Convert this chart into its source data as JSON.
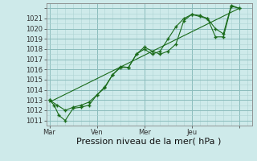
{
  "title": "",
  "xlabel": "Pression niveau de la mer( hPa )",
  "bg_color": "#ceeaea",
  "grid_color_minor": "#aed4d4",
  "grid_color_major": "#8bbcbc",
  "line_color": "#1a6b1a",
  "ylim": [
    1009.5,
    1021.5
  ],
  "yticks": [
    1010,
    1011,
    1012,
    1013,
    1014,
    1015,
    1016,
    1017,
    1018,
    1019,
    1020,
    1021
  ],
  "day_positions": [
    0,
    3,
    6,
    9,
    12
  ],
  "day_labels": [
    "Mar",
    "Ven",
    "Mer",
    "Jeu",
    ""
  ],
  "xlim": [
    -0.2,
    12.8
  ],
  "series1_x": [
    0.0,
    0.3,
    0.6,
    1.0,
    1.5,
    2.0,
    2.5,
    3.0,
    3.5,
    4.0,
    4.5,
    5.0,
    5.5,
    6.0,
    6.5,
    7.0,
    7.5,
    8.0,
    8.5,
    9.0,
    9.5,
    10.0,
    10.5,
    11.0,
    11.5,
    12.0
  ],
  "series1_y": [
    1012.0,
    1011.5,
    1010.5,
    1010.0,
    1011.2,
    1011.3,
    1011.5,
    1012.5,
    1013.2,
    1014.5,
    1015.2,
    1015.2,
    1016.5,
    1017.2,
    1016.8,
    1016.5,
    1016.8,
    1017.5,
    1019.8,
    1020.4,
    1020.3,
    1020.0,
    1018.2,
    1018.2,
    1021.2,
    1021.0
  ],
  "series2_x": [
    0.0,
    0.5,
    1.0,
    1.5,
    2.0,
    2.5,
    3.0,
    3.5,
    4.0,
    4.5,
    5.0,
    5.5,
    6.0,
    6.5,
    7.0,
    7.5,
    8.0,
    8.5,
    9.0,
    9.5,
    10.0,
    10.5,
    11.0,
    11.5,
    12.0
  ],
  "series2_y": [
    1012.0,
    1011.5,
    1011.0,
    1011.3,
    1011.5,
    1011.8,
    1012.5,
    1013.3,
    1014.5,
    1015.3,
    1015.2,
    1016.5,
    1017.0,
    1016.5,
    1016.8,
    1018.0,
    1019.2,
    1020.0,
    1020.4,
    1020.2,
    1020.0,
    1019.0,
    1018.5,
    1021.3,
    1021.0
  ],
  "trend_x": [
    0.0,
    12.0
  ],
  "trend_y": [
    1011.8,
    1021.0
  ],
  "xlabel_fontsize": 8,
  "tick_fontsize": 6
}
